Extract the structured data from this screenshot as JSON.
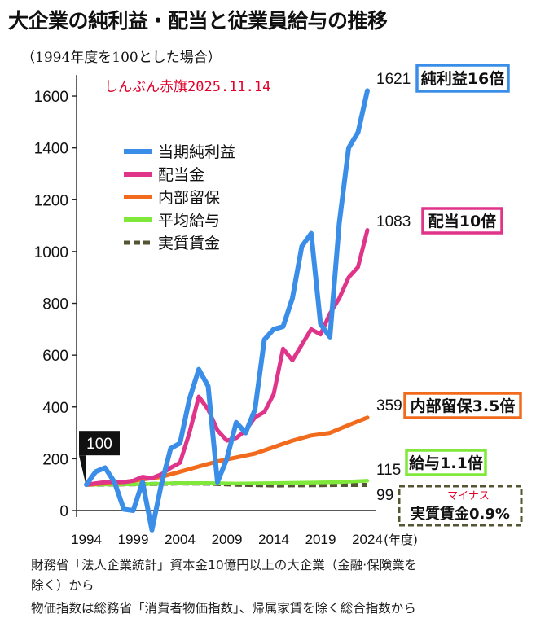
{
  "header": {
    "title": "大企業の純利益・配当と従業員給与の推移",
    "subtitle": "（1994年度を100とした場合）",
    "source": "しんぶん赤旗2025.11.14"
  },
  "notes": {
    "line1": "財務省「法人企業統計」資本金10億円以上の大企業（金融·保険業を",
    "line2": "除く）から",
    "line3": "物価指数は総務省「消費者物価指数」、帰属家賃を除く総合指数から"
  },
  "colors": {
    "net_profit": "#3b8ee8",
    "dividend": "#e0338a",
    "retained": "#f26a1b",
    "avg_salary": "#7fe83a",
    "real_wage": "#555533"
  },
  "chart_data": {
    "type": "line",
    "title": "大企業の純利益・配当と従業員給与の推移",
    "xlabel": "(年度)",
    "ylabel": "",
    "ylim": [
      -100,
      1650
    ],
    "xlim": [
      1994,
      2024
    ],
    "yticks": [
      0,
      200,
      400,
      600,
      800,
      1000,
      1200,
      1400,
      1600
    ],
    "xticks": [
      1994,
      1999,
      2004,
      2009,
      2014,
      2019,
      2024
    ],
    "start_label": "100",
    "legend_position": "upper-left",
    "series": [
      {
        "name": "当期純利益",
        "key": "net_profit",
        "x": [
          1994,
          1995,
          1996,
          1997,
          1998,
          1999,
          2000,
          2001,
          2002,
          2003,
          2004,
          2005,
          2006,
          2007,
          2008,
          2009,
          2010,
          2011,
          2012,
          2013,
          2014,
          2015,
          2016,
          2017,
          2018,
          2019,
          2020,
          2021,
          2022,
          2023,
          2024
        ],
        "values": [
          100,
          150,
          165,
          110,
          5,
          0,
          110,
          -75,
          100,
          240,
          260,
          430,
          545,
          480,
          110,
          200,
          340,
          300,
          390,
          660,
          700,
          710,
          820,
          1020,
          1070,
          720,
          670,
          1110,
          1400,
          1460,
          1621
        ],
        "end_label": "1621",
        "callout": "純利益16倍"
      },
      {
        "name": "配当金",
        "key": "dividend",
        "x": [
          1994,
          1995,
          1996,
          1997,
          1998,
          1999,
          2000,
          2001,
          2002,
          2003,
          2004,
          2005,
          2006,
          2007,
          2008,
          2009,
          2010,
          2011,
          2012,
          2013,
          2014,
          2015,
          2016,
          2017,
          2018,
          2019,
          2020,
          2021,
          2022,
          2023,
          2024
        ],
        "values": [
          100,
          105,
          110,
          112,
          110,
          115,
          130,
          125,
          140,
          165,
          185,
          300,
          440,
          390,
          310,
          270,
          280,
          310,
          360,
          380,
          450,
          625,
          580,
          640,
          700,
          680,
          760,
          820,
          900,
          940,
          1083
        ],
        "end_label": "1083",
        "callout": "配当10倍"
      },
      {
        "name": "内部留保",
        "key": "retained",
        "x": [
          1994,
          1996,
          1998,
          2000,
          2002,
          2004,
          2006,
          2008,
          2010,
          2012,
          2014,
          2016,
          2018,
          2020,
          2022,
          2024
        ],
        "values": [
          100,
          105,
          110,
          120,
          130,
          150,
          170,
          190,
          205,
          220,
          245,
          270,
          290,
          300,
          330,
          359
        ],
        "end_label": "359",
        "callout": "内部留保3.5倍"
      },
      {
        "name": "平均給与",
        "key": "avg_salary",
        "x": [
          1994,
          1997,
          2000,
          2004,
          2007,
          2010,
          2014,
          2018,
          2021,
          2024
        ],
        "values": [
          100,
          101,
          102,
          106,
          106,
          104,
          106,
          108,
          110,
          115
        ],
        "end_label": "115",
        "callout": "給与1.1倍"
      },
      {
        "name": "実質賃金",
        "key": "real_wage",
        "x": [
          1994,
          1997,
          2000,
          2004,
          2007,
          2010,
          2014,
          2018,
          2021,
          2024
        ],
        "values": [
          100,
          101,
          102,
          105,
          104,
          100,
          97,
          98,
          99,
          99
        ],
        "end_label": "99",
        "callout": "実質賃金0.9%",
        "callout_note": "マイナス"
      }
    ]
  }
}
